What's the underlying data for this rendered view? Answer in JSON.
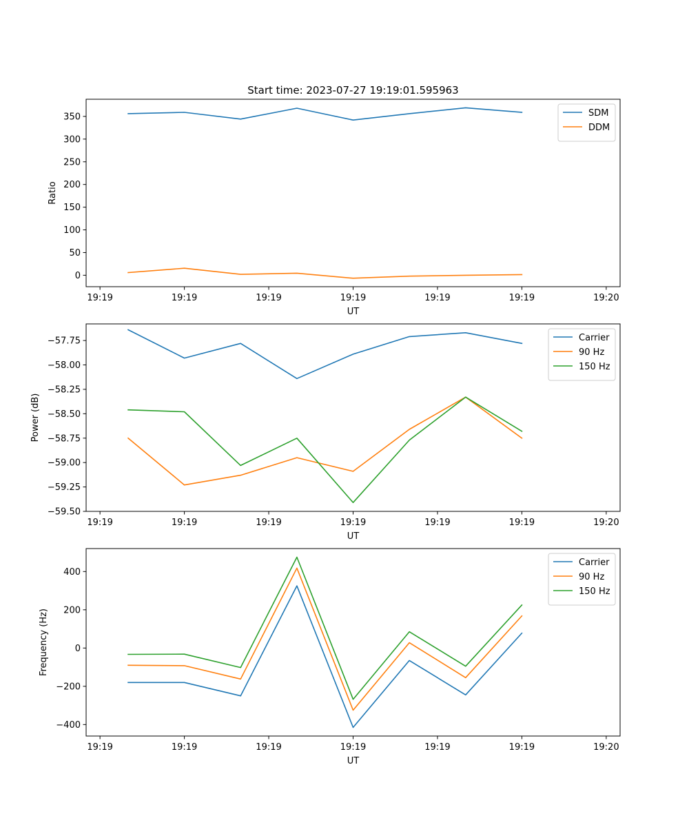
{
  "figure": {
    "title": "Start time: 2023-07-27 19:19:01.595963"
  },
  "chart_data": [
    {
      "type": "line",
      "id": "ratio",
      "title": "Start time: 2023-07-27 19:19:01.595963",
      "xlabel": "UT",
      "ylabel": "Ratio",
      "x": [
        1,
        2,
        3,
        4,
        5,
        6,
        7,
        8
      ],
      "xlim": [
        0.2533,
        9.7467
      ],
      "xticks": [
        0.5,
        2.0,
        3.5,
        5.0,
        6.5,
        8.0,
        9.5
      ],
      "xtick_labels": [
        "19:19",
        "19:19",
        "19:19",
        "19:19",
        "19:19",
        "19:19",
        "19:20"
      ],
      "ylim": [
        -25.2,
        387.8
      ],
      "yticks": [
        0,
        50,
        100,
        150,
        200,
        250,
        300,
        350
      ],
      "ytick_labels": [
        "0",
        "50",
        "100",
        "150",
        "200",
        "250",
        "300",
        "350"
      ],
      "grid": false,
      "legend_position": "top-right",
      "series": [
        {
          "name": "SDM",
          "color": "#1f77b4",
          "values": [
            356,
            359,
            344,
            368,
            342,
            356,
            369,
            359
          ]
        },
        {
          "name": "DDM",
          "color": "#ff7f0e",
          "values": [
            6,
            15.5,
            2,
            4.5,
            -6.5,
            -2,
            0,
            1.5
          ]
        }
      ]
    },
    {
      "type": "line",
      "id": "power",
      "title": "",
      "xlabel": "UT",
      "ylabel": "Power (dB)",
      "x": [
        1,
        2,
        3,
        4,
        5,
        6,
        7,
        8
      ],
      "xlim": [
        0.2533,
        9.7467
      ],
      "xticks": [
        0.5,
        2.0,
        3.5,
        5.0,
        6.5,
        8.0,
        9.5
      ],
      "xtick_labels": [
        "19:19",
        "19:19",
        "19:19",
        "19:19",
        "19:19",
        "19:19",
        "19:20"
      ],
      "ylim": [
        -59.5,
        -57.58
      ],
      "yticks": [
        -59.5,
        -59.25,
        -59.0,
        -58.75,
        -58.5,
        -58.25,
        -58.0,
        -57.75
      ],
      "ytick_labels": [
        "−59.50",
        "−59.25",
        "−59.00",
        "−58.75",
        "−58.50",
        "−58.25",
        "−58.00",
        "−57.75"
      ],
      "grid": false,
      "legend_position": "top-right",
      "series": [
        {
          "name": "Carrier",
          "color": "#1f77b4",
          "values": [
            -57.64,
            -57.93,
            -57.78,
            -58.14,
            -57.89,
            -57.71,
            -57.67,
            -57.78
          ]
        },
        {
          "name": "90 Hz",
          "color": "#ff7f0e",
          "values": [
            -58.75,
            -59.23,
            -59.13,
            -58.95,
            -59.09,
            -58.66,
            -58.33,
            -58.75
          ]
        },
        {
          "name": "150 Hz",
          "color": "#2ca02c",
          "values": [
            -58.46,
            -58.48,
            -59.03,
            -58.75,
            -59.41,
            -58.77,
            -58.33,
            -58.68
          ]
        }
      ]
    },
    {
      "type": "line",
      "id": "frequency",
      "title": "",
      "xlabel": "UT",
      "ylabel": "Frequency (Hz)",
      "x": [
        1,
        2,
        3,
        4,
        5,
        6,
        7,
        8
      ],
      "xlim": [
        0.2533,
        9.7467
      ],
      "xticks": [
        0.5,
        2.0,
        3.5,
        5.0,
        6.5,
        8.0,
        9.5
      ],
      "xtick_labels": [
        "19:19",
        "19:19",
        "19:19",
        "19:19",
        "19:19",
        "19:19",
        "19:20"
      ],
      "ylim": [
        -460,
        520
      ],
      "yticks": [
        -400,
        -200,
        0,
        200,
        400
      ],
      "ytick_labels": [
        "−400",
        "−200",
        "0",
        "200",
        "400"
      ],
      "grid": false,
      "legend_position": "top-right",
      "series": [
        {
          "name": "Carrier",
          "color": "#1f77b4",
          "values": [
            -180,
            -180,
            -250,
            325,
            -415,
            -65,
            -245,
            78
          ]
        },
        {
          "name": "90 Hz",
          "color": "#ff7f0e",
          "values": [
            -90,
            -92,
            -162,
            418,
            -325,
            28,
            -155,
            168
          ]
        },
        {
          "name": "150 Hz",
          "color": "#2ca02c",
          "values": [
            -33,
            -32,
            -102,
            475,
            -268,
            85,
            -95,
            225
          ]
        }
      ]
    }
  ]
}
